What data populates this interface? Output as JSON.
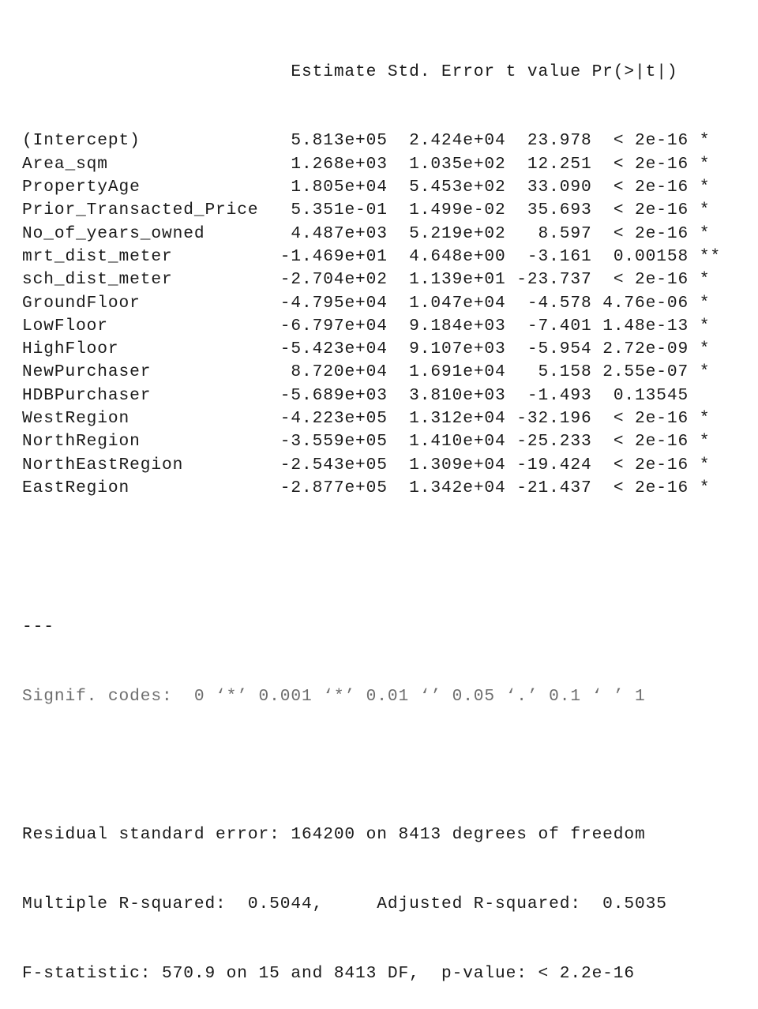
{
  "header_line": "                         Estimate Std. Error t value Pr(>|t|)",
  "rows": [
    {
      "name": "(Intercept)",
      "estimate": "5.813e+05",
      "std_error": "2.424e+04",
      "t_value": "23.978",
      "p_value": "< 2e-16",
      "signif": "*"
    },
    {
      "name": "Area_sqm",
      "estimate": "1.268e+03",
      "std_error": "1.035e+02",
      "t_value": "12.251",
      "p_value": "< 2e-16",
      "signif": "*"
    },
    {
      "name": "PropertyAge",
      "estimate": "1.805e+04",
      "std_error": "5.453e+02",
      "t_value": "33.090",
      "p_value": "< 2e-16",
      "signif": "*"
    },
    {
      "name": "Prior_Transacted_Price",
      "estimate": "5.351e-01",
      "std_error": "1.499e-02",
      "t_value": "35.693",
      "p_value": "< 2e-16",
      "signif": "*"
    },
    {
      "name": "No_of_years_owned",
      "estimate": "4.487e+03",
      "std_error": "5.219e+02",
      "t_value": "8.597",
      "p_value": "< 2e-16",
      "signif": "*"
    },
    {
      "name": "mrt_dist_meter",
      "estimate": "-1.469e+01",
      "std_error": "4.648e+00",
      "t_value": "-3.161",
      "p_value": "0.00158",
      "signif": "**"
    },
    {
      "name": "sch_dist_meter",
      "estimate": "-2.704e+02",
      "std_error": "1.139e+01",
      "t_value": "-23.737",
      "p_value": "< 2e-16",
      "signif": "*"
    },
    {
      "name": "GroundFloor",
      "estimate": "-4.795e+04",
      "std_error": "1.047e+04",
      "t_value": "-4.578",
      "p_value": "4.76e-06",
      "signif": "*"
    },
    {
      "name": "LowFloor",
      "estimate": "-6.797e+04",
      "std_error": "9.184e+03",
      "t_value": "-7.401",
      "p_value": "1.48e-13",
      "signif": "*"
    },
    {
      "name": "HighFloor",
      "estimate": "-5.423e+04",
      "std_error": "9.107e+03",
      "t_value": "-5.954",
      "p_value": "2.72e-09",
      "signif": "*"
    },
    {
      "name": "NewPurchaser",
      "estimate": "8.720e+04",
      "std_error": "1.691e+04",
      "t_value": "5.158",
      "p_value": "2.55e-07",
      "signif": "*"
    },
    {
      "name": "HDBPurchaser",
      "estimate": "-5.689e+03",
      "std_error": "3.810e+03",
      "t_value": "-1.493",
      "p_value": "0.13545",
      "signif": ""
    },
    {
      "name": "WestRegion",
      "estimate": "-4.223e+05",
      "std_error": "1.312e+04",
      "t_value": "-32.196",
      "p_value": "< 2e-16",
      "signif": "*"
    },
    {
      "name": "NorthRegion",
      "estimate": "-3.559e+05",
      "std_error": "1.410e+04",
      "t_value": "-25.233",
      "p_value": "< 2e-16",
      "signif": "*"
    },
    {
      "name": "NorthEastRegion",
      "estimate": "-2.543e+05",
      "std_error": "1.309e+04",
      "t_value": "-19.424",
      "p_value": "< 2e-16",
      "signif": "*"
    },
    {
      "name": "EastRegion",
      "estimate": "-2.877e+05",
      "std_error": "1.342e+04",
      "t_value": "-21.437",
      "p_value": "< 2e-16",
      "signif": "*"
    }
  ],
  "separator": "---",
  "signif_codes": "Signif. codes:  0 ‘*’ 0.001 ‘*’ 0.01 ‘’ 0.05 ‘.’ 0.1 ‘ ’ 1",
  "residual_line": "Residual standard error: 164200 on 8413 degrees of freedom",
  "rsquared_line": "Multiple R-squared:  0.5044,     Adjusted R-squared:  0.5035",
  "fstat_line": "F-statistic: 570.9 on 15 and 8413 DF,  p-value: < 2.2e-16"
}
